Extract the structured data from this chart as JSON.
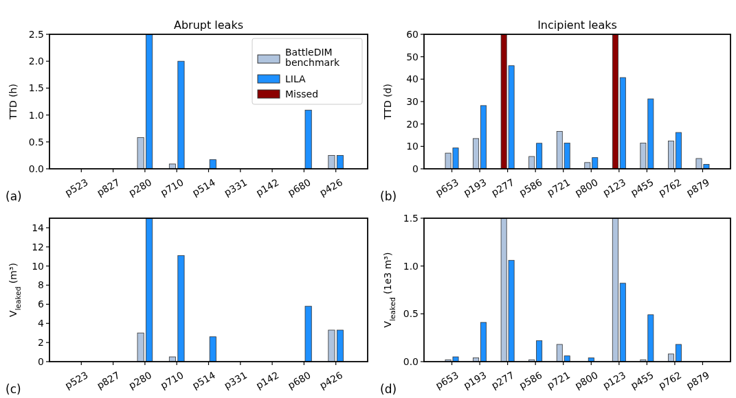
{
  "chart_data": [
    {
      "type": "bar",
      "title": "Abrupt leaks",
      "ylabel": "TTD (h)",
      "annotations": [
        "(a)"
      ],
      "categories": [
        "p523",
        "p827",
        "p280",
        "p710",
        "p514",
        "p331",
        "p142",
        "p680",
        "p426"
      ],
      "ylim": [
        0,
        2.5
      ],
      "yticks": [
        {
          "value": 0,
          "label": "0.0"
        },
        {
          "value": 0.5,
          "label": "0.5"
        },
        {
          "value": 1,
          "label": "1.0"
        },
        {
          "value": 1.5,
          "label": "1.5"
        },
        {
          "value": 2,
          "label": "2.0"
        },
        {
          "value": 2.5,
          "label": "2.5"
        }
      ],
      "legend": "top right",
      "series": [
        {
          "name": "BattleDIM benchmark",
          "color": "#b0c4de",
          "values": [
            0,
            0,
            0.58,
            0.09,
            0,
            0,
            0,
            0,
            0.25
          ]
        },
        {
          "name": "LILA",
          "color": "#1e90ff",
          "values": [
            0,
            0,
            2.5,
            2.0,
            0.17,
            0,
            0,
            1.09,
            0.25
          ]
        },
        {
          "name": "Missed",
          "color": "#8b0000",
          "values": [
            null,
            null,
            null,
            null,
            null,
            null,
            null,
            null,
            null
          ]
        }
      ]
    },
    {
      "type": "bar",
      "title": "Incipient leaks",
      "ylabel": "TTD (d)",
      "annotations": [
        "(b)"
      ],
      "categories": [
        "p653",
        "p193",
        "p277",
        "p586",
        "p721",
        "p800",
        "p123",
        "p455",
        "p762",
        "p879"
      ],
      "ylim": [
        0,
        60
      ],
      "yticks": [
        0,
        10,
        20,
        30,
        40,
        50,
        60
      ],
      "series": [
        {
          "color": "#b0c4de",
          "values": [
            7,
            13.5,
            null,
            5.5,
            16.7,
            2.8,
            null,
            11.5,
            12.4,
            4.6
          ]
        },
        {
          "color": "#1e90ff",
          "values": [
            9.3,
            28.2,
            46,
            11.4,
            11.5,
            5,
            40.7,
            31.2,
            16.2,
            2
          ]
        },
        {
          "color": "#8b0000",
          "values": [
            null,
            null,
            60,
            null,
            null,
            null,
            60,
            null,
            null,
            null
          ]
        }
      ]
    },
    {
      "type": "bar",
      "ylabel": "V$_{leaked}$ (m³)",
      "annotations": [
        "(c)"
      ],
      "categories": [
        "p523",
        "p827",
        "p280",
        "p710",
        "p514",
        "p331",
        "p142",
        "p680",
        "p426"
      ],
      "ylim": [
        0,
        15
      ],
      "yticks": [
        0,
        2,
        4,
        6,
        8,
        10,
        12,
        14
      ],
      "series": [
        {
          "color": "#b0c4de",
          "values": [
            0,
            0,
            3.0,
            0.5,
            0,
            0,
            0,
            0,
            3.3
          ]
        },
        {
          "color": "#1e90ff",
          "values": [
            0,
            0,
            15,
            11.1,
            2.6,
            0,
            0,
            5.8,
            3.3
          ]
        }
      ]
    },
    {
      "type": "bar",
      "ylabel": "V$_{leaked}$ (1e3 m³)",
      "annotations": [
        "(d)"
      ],
      "categories": [
        "p653",
        "p193",
        "p277",
        "p586",
        "p721",
        "p800",
        "p123",
        "p455",
        "p762",
        "p879"
      ],
      "ylim": [
        0,
        1.5
      ],
      "yticks": [
        {
          "value": 0,
          "label": "0.0"
        },
        {
          "value": 0.5,
          "label": "0.5"
        },
        {
          "value": 1,
          "label": "1.0"
        },
        {
          "value": 1.5,
          "label": "1.5"
        }
      ],
      "series": [
        {
          "color": "#b0c4de",
          "values": [
            0.02,
            0.04,
            1.5,
            0.02,
            0.18,
            null,
            1.5,
            0.02,
            0.08,
            null
          ]
        },
        {
          "color": "#1e90ff",
          "values": [
            0.05,
            0.41,
            1.06,
            0.22,
            0.06,
            0.04,
            0.82,
            0.49,
            0.18,
            0
          ]
        }
      ]
    }
  ]
}
